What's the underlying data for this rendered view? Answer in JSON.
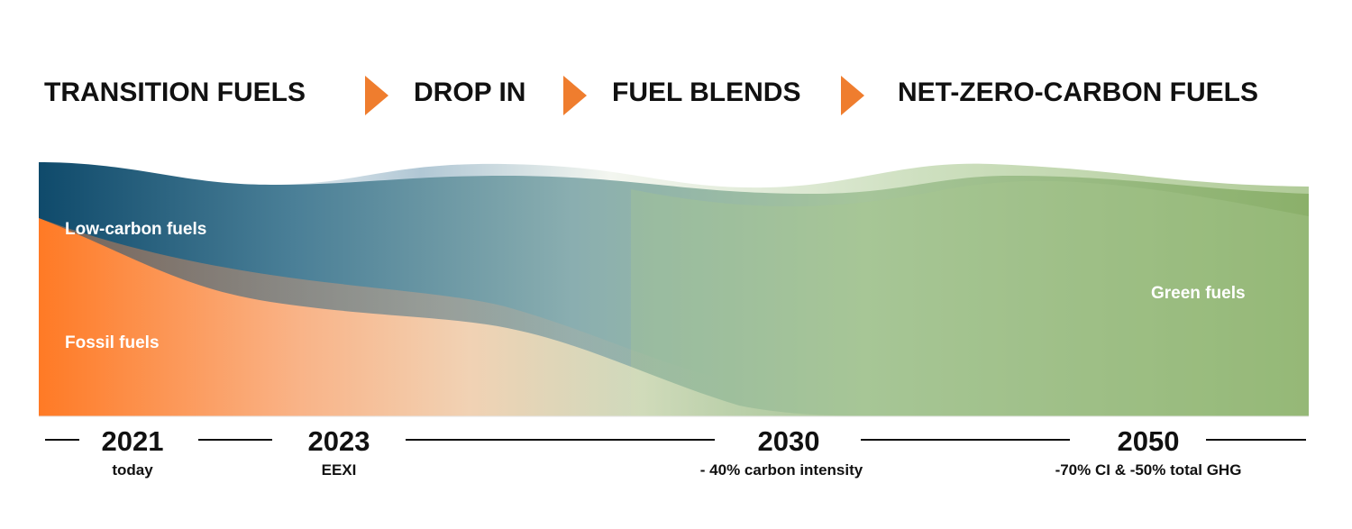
{
  "phases": [
    "TRANSITION FUELS",
    "DROP IN",
    "FUEL BLENDS",
    "NET-ZERO-CARBON FUELS"
  ],
  "arrow_icon": "orange-chevron-right",
  "labels": {
    "low_carbon": "Low-carbon fuels",
    "fossil": "Fossil fuels",
    "green": "Green fuels"
  },
  "milestones": [
    {
      "year": "2021",
      "note": "today"
    },
    {
      "year": "2023",
      "note": "EEXI"
    },
    {
      "year": "2030",
      "note": "- 40% carbon intensity"
    },
    {
      "year": "2050",
      "note": "-70% CI & -50% total GHG"
    }
  ],
  "colors": {
    "accent": "#ef7d2e",
    "fossil": "#ff7a25",
    "low_carbon": "#0f4a6b",
    "green": "#8db26a"
  }
}
